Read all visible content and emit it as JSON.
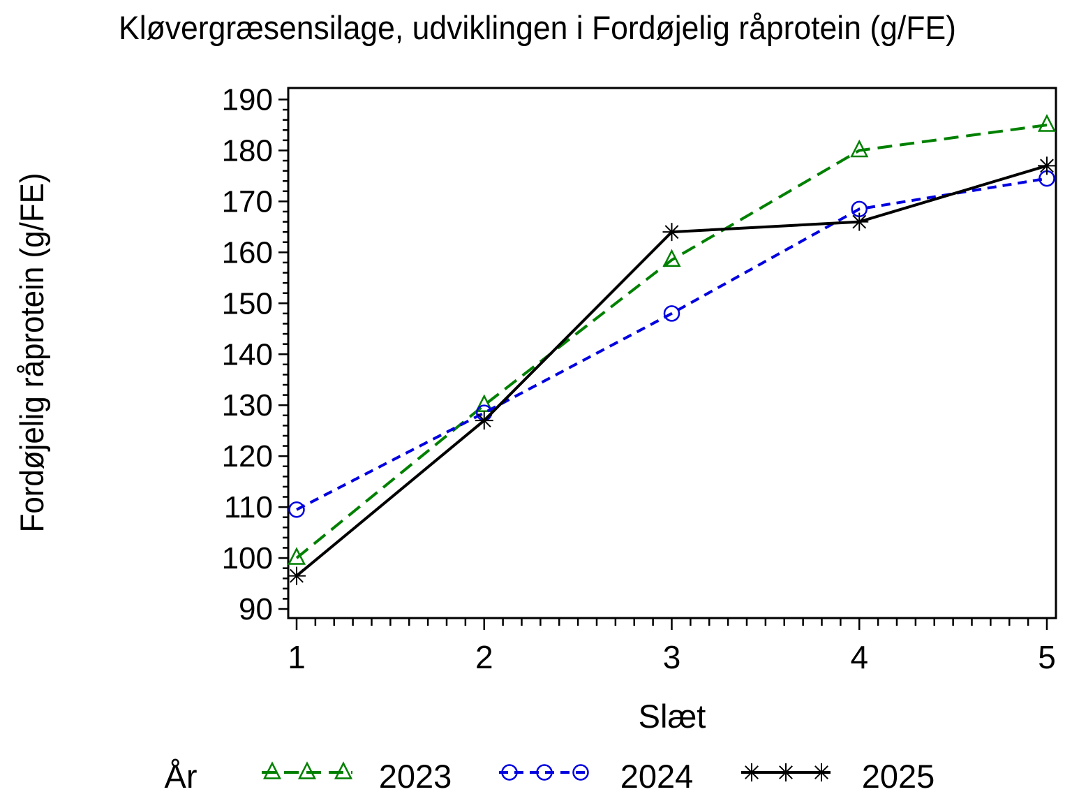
{
  "colors": {
    "background": "#ffffff",
    "axis": "#000000",
    "text": "#000000",
    "series_2023": "#008000",
    "series_2024": "#0000e0",
    "series_2025": "#000000"
  },
  "chart_data": {
    "type": "line",
    "title": "Kløvergræsensilage, udviklingen i Fordøjelig råprotein (g/FE)",
    "xlabel": "Slæt",
    "ylabel": "Fordøjelig råprotein (g/FE)",
    "x": [
      1,
      2,
      3,
      4,
      5
    ],
    "x_tick_labels": [
      "1",
      "2",
      "3",
      "4",
      "5"
    ],
    "y_tick_labels": [
      "90",
      "100",
      "110",
      "120",
      "130",
      "140",
      "150",
      "160",
      "170",
      "180",
      "190"
    ],
    "ylim": [
      90,
      190
    ],
    "xlim": [
      1,
      5
    ],
    "y_major_step": 10,
    "y_minor_step": 2,
    "x_minor_step": 0.1,
    "grid": false,
    "legend_title": "År",
    "legend_position": "bottom",
    "series": [
      {
        "name": "2023",
        "color": "#008000",
        "line_style": "dashed",
        "dash": "21,11",
        "marker": "triangle",
        "values": [
          100,
          130,
          158.5,
          180,
          185
        ]
      },
      {
        "name": "2024",
        "color": "#0000e0",
        "line_style": "dashed",
        "dash": "13,9",
        "marker": "circle",
        "values": [
          109.5,
          128.5,
          148,
          168.5,
          174.5
        ]
      },
      {
        "name": "2025",
        "color": "#000000",
        "line_style": "solid",
        "dash": "",
        "marker": "star",
        "values": [
          96.5,
          127,
          164,
          166,
          177
        ]
      }
    ]
  }
}
